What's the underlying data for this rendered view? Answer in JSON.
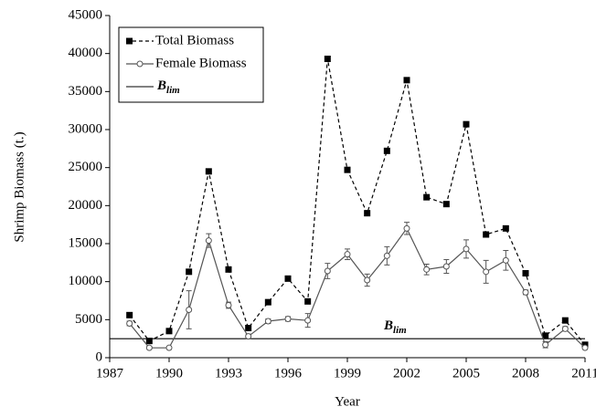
{
  "chart_data": {
    "type": "line",
    "x_label": "Year",
    "y_label": "Shrimp Biomass (t.)",
    "x": [
      1988,
      1989,
      1990,
      1991,
      1992,
      1993,
      1994,
      1995,
      1996,
      1997,
      1998,
      1999,
      2000,
      2001,
      2002,
      2003,
      2004,
      2005,
      2006,
      2007,
      2008,
      2009,
      2010,
      2011
    ],
    "series": [
      {
        "name": "Total Biomass",
        "color": "#000000",
        "dash": "4,3",
        "marker": "square",
        "values": [
          5600,
          2200,
          3500,
          11300,
          24500,
          11600,
          3900,
          7300,
          10400,
          7400,
          39300,
          24700,
          19000,
          27200,
          36500,
          21100,
          20200,
          30700,
          16200,
          17000,
          11100,
          2900,
          4900,
          1700
        ]
      },
      {
        "name": "Female Biomass",
        "color": "#555555",
        "dash": "none",
        "marker": "circle",
        "values": [
          4500,
          1300,
          1300,
          6300,
          15400,
          6900,
          2800,
          4800,
          5100,
          4900,
          11400,
          13600,
          10200,
          13400,
          17000,
          11600,
          12000,
          14300,
          11300,
          12800,
          8600,
          1700,
          3800,
          1300
        ],
        "errors": [
          300,
          200,
          200,
          2500,
          900,
          400,
          300,
          300,
          300,
          900,
          1000,
          700,
          800,
          1200,
          800,
          700,
          900,
          1200,
          1500,
          1300,
          300,
          400,
          300,
          200
        ]
      }
    ],
    "reference_line": {
      "value": 2500,
      "symbol": "B",
      "subscript": "lim",
      "color": "#000000"
    },
    "xlim": [
      1987,
      2011
    ],
    "xticks": [
      1987,
      1990,
      1993,
      1996,
      1999,
      2002,
      2005,
      2008,
      2011
    ],
    "ylim": [
      0,
      45000
    ],
    "yticks": [
      0,
      5000,
      10000,
      15000,
      20000,
      25000,
      30000,
      35000,
      40000,
      45000
    ],
    "legend": "upper left"
  }
}
